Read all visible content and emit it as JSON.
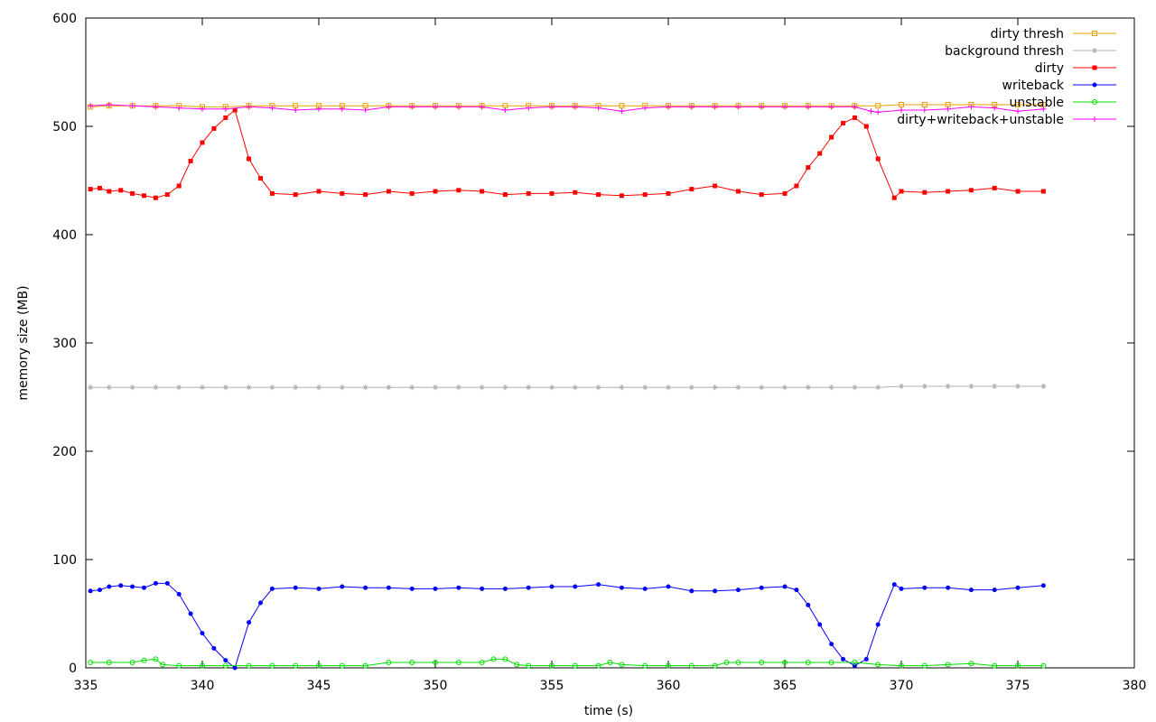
{
  "chart_data": {
    "type": "line",
    "title": "",
    "xlabel": "time (s)",
    "ylabel": "memory size (MB)",
    "xlim": [
      335,
      380
    ],
    "ylim": [
      0,
      600
    ],
    "xticks": [
      335,
      340,
      345,
      350,
      355,
      360,
      365,
      370,
      375,
      380
    ],
    "yticks": [
      0,
      100,
      200,
      300,
      400,
      500,
      600
    ],
    "grid": false,
    "legend_position": "top-right",
    "series": [
      {
        "name": "dirty thresh",
        "color": "#e6a000",
        "marker": "square-open",
        "x": [
          335.2,
          336,
          337,
          338,
          339,
          340,
          341,
          342,
          343,
          344,
          345,
          346,
          347,
          348,
          349,
          350,
          351,
          352,
          353,
          354,
          355,
          356,
          357,
          358,
          359,
          360,
          361,
          362,
          363,
          364,
          365,
          366,
          367,
          368,
          369,
          370,
          371,
          372,
          373,
          374,
          375,
          376.1
        ],
        "y": [
          518,
          519,
          519,
          519,
          519,
          518,
          518,
          519,
          519,
          519,
          519,
          519,
          519,
          519,
          519,
          519,
          519,
          519,
          519,
          519,
          519,
          519,
          519,
          519,
          519,
          519,
          519,
          519,
          519,
          519,
          519,
          519,
          519,
          519,
          519,
          520,
          520,
          520,
          520,
          520,
          520,
          520
        ]
      },
      {
        "name": "background thresh",
        "color": "#b0b0b0",
        "marker": "star",
        "x": [
          335.2,
          336,
          337,
          338,
          339,
          340,
          341,
          342,
          343,
          344,
          345,
          346,
          347,
          348,
          349,
          350,
          351,
          352,
          353,
          354,
          355,
          356,
          357,
          358,
          359,
          360,
          361,
          362,
          363,
          364,
          365,
          366,
          367,
          368,
          369,
          370,
          371,
          372,
          373,
          374,
          375,
          376.1
        ],
        "y": [
          259,
          259,
          259,
          259,
          259,
          259,
          259,
          259,
          259,
          259,
          259,
          259,
          259,
          259,
          259,
          259,
          259,
          259,
          259,
          259,
          259,
          259,
          259,
          259,
          259,
          259,
          259,
          259,
          259,
          259,
          259,
          259,
          259,
          259,
          259,
          260,
          260,
          260,
          260,
          260,
          260,
          260
        ]
      },
      {
        "name": "dirty",
        "color": "#ff0000",
        "marker": "square",
        "x": [
          335.2,
          335.6,
          336,
          336.5,
          337,
          337.5,
          338,
          338.5,
          339,
          339.5,
          340,
          340.5,
          341,
          341.4,
          342,
          342.5,
          343,
          344,
          345,
          346,
          347,
          348,
          349,
          350,
          351,
          352,
          353,
          354,
          355,
          356,
          357,
          358,
          359,
          360,
          361,
          362,
          363,
          364,
          365,
          365.5,
          366,
          366.5,
          367,
          367.5,
          368,
          368.5,
          369,
          369.7,
          370,
          371,
          372,
          373,
          374,
          375,
          376.1
        ],
        "y": [
          442,
          443,
          440,
          441,
          438,
          436,
          434,
          437,
          445,
          468,
          485,
          498,
          508,
          515,
          470,
          452,
          438,
          437,
          440,
          438,
          437,
          440,
          438,
          440,
          441,
          440,
          437,
          438,
          438,
          439,
          437,
          436,
          437,
          438,
          442,
          445,
          440,
          437,
          438,
          445,
          462,
          475,
          490,
          503,
          508,
          500,
          470,
          434,
          440,
          439,
          440,
          441,
          443,
          440,
          440
        ]
      },
      {
        "name": "writeback",
        "color": "#0000ff",
        "marker": "circle",
        "x": [
          335.2,
          335.6,
          336,
          336.5,
          337,
          337.5,
          338,
          338.5,
          339,
          339.5,
          340,
          340.5,
          341,
          341.4,
          342,
          342.5,
          343,
          344,
          345,
          346,
          347,
          348,
          349,
          350,
          351,
          352,
          353,
          354,
          355,
          356,
          357,
          358,
          359,
          360,
          361,
          362,
          363,
          364,
          365,
          365.5,
          366,
          366.5,
          367,
          367.5,
          368,
          368.5,
          369,
          369.7,
          370,
          371,
          372,
          373,
          374,
          375,
          376.1
        ],
        "y": [
          71,
          72,
          75,
          76,
          75,
          74,
          78,
          78,
          68,
          50,
          32,
          18,
          7,
          0,
          42,
          60,
          73,
          74,
          73,
          75,
          74,
          74,
          73,
          73,
          74,
          73,
          73,
          74,
          75,
          75,
          77,
          74,
          73,
          75,
          71,
          71,
          72,
          74,
          75,
          72,
          58,
          40,
          22,
          8,
          2,
          8,
          40,
          77,
          73,
          74,
          74,
          72,
          72,
          74,
          76
        ]
      },
      {
        "name": "unstable",
        "color": "#00dd00",
        "marker": "circle-open",
        "x": [
          335.2,
          336,
          337,
          337.5,
          338,
          338.3,
          339,
          340,
          341,
          342,
          343,
          344,
          345,
          346,
          347,
          348,
          349,
          350,
          351,
          352,
          352.5,
          353,
          353.5,
          354,
          355,
          356,
          357,
          357.5,
          358,
          359,
          360,
          361,
          362,
          362.5,
          363,
          364,
          365,
          366,
          367,
          368,
          369,
          370,
          371,
          372,
          373,
          374,
          375,
          376.1
        ],
        "y": [
          5,
          5,
          5,
          7,
          8,
          3,
          2,
          2,
          2,
          2,
          2,
          2,
          2,
          2,
          2,
          5,
          5,
          5,
          5,
          5,
          8,
          8,
          3,
          2,
          2,
          2,
          2,
          5,
          3,
          2,
          2,
          2,
          2,
          5,
          5,
          5,
          5,
          5,
          5,
          5,
          3,
          2,
          2,
          3,
          4,
          2,
          2,
          2
        ]
      },
      {
        "name": "dirty+writeback+unstable",
        "color": "#ff00ff",
        "marker": "plus",
        "x": [
          335.2,
          336,
          337,
          338,
          339,
          340,
          341,
          342,
          343,
          344,
          345,
          346,
          347,
          348,
          349,
          350,
          351,
          352,
          353,
          354,
          355,
          356,
          357,
          358,
          359,
          360,
          361,
          362,
          363,
          364,
          365,
          366,
          367,
          368,
          368.7,
          369,
          370,
          371,
          372,
          373,
          374,
          375,
          376.1
        ],
        "y": [
          519,
          520,
          519,
          518,
          517,
          516,
          516,
          518,
          517,
          515,
          516,
          516,
          515,
          518,
          518,
          518,
          518,
          518,
          515,
          517,
          518,
          518,
          517,
          514,
          517,
          518,
          518,
          518,
          518,
          518,
          518,
          518,
          518,
          518,
          514,
          513,
          515,
          515,
          516,
          518,
          517,
          514,
          516
        ]
      }
    ]
  }
}
